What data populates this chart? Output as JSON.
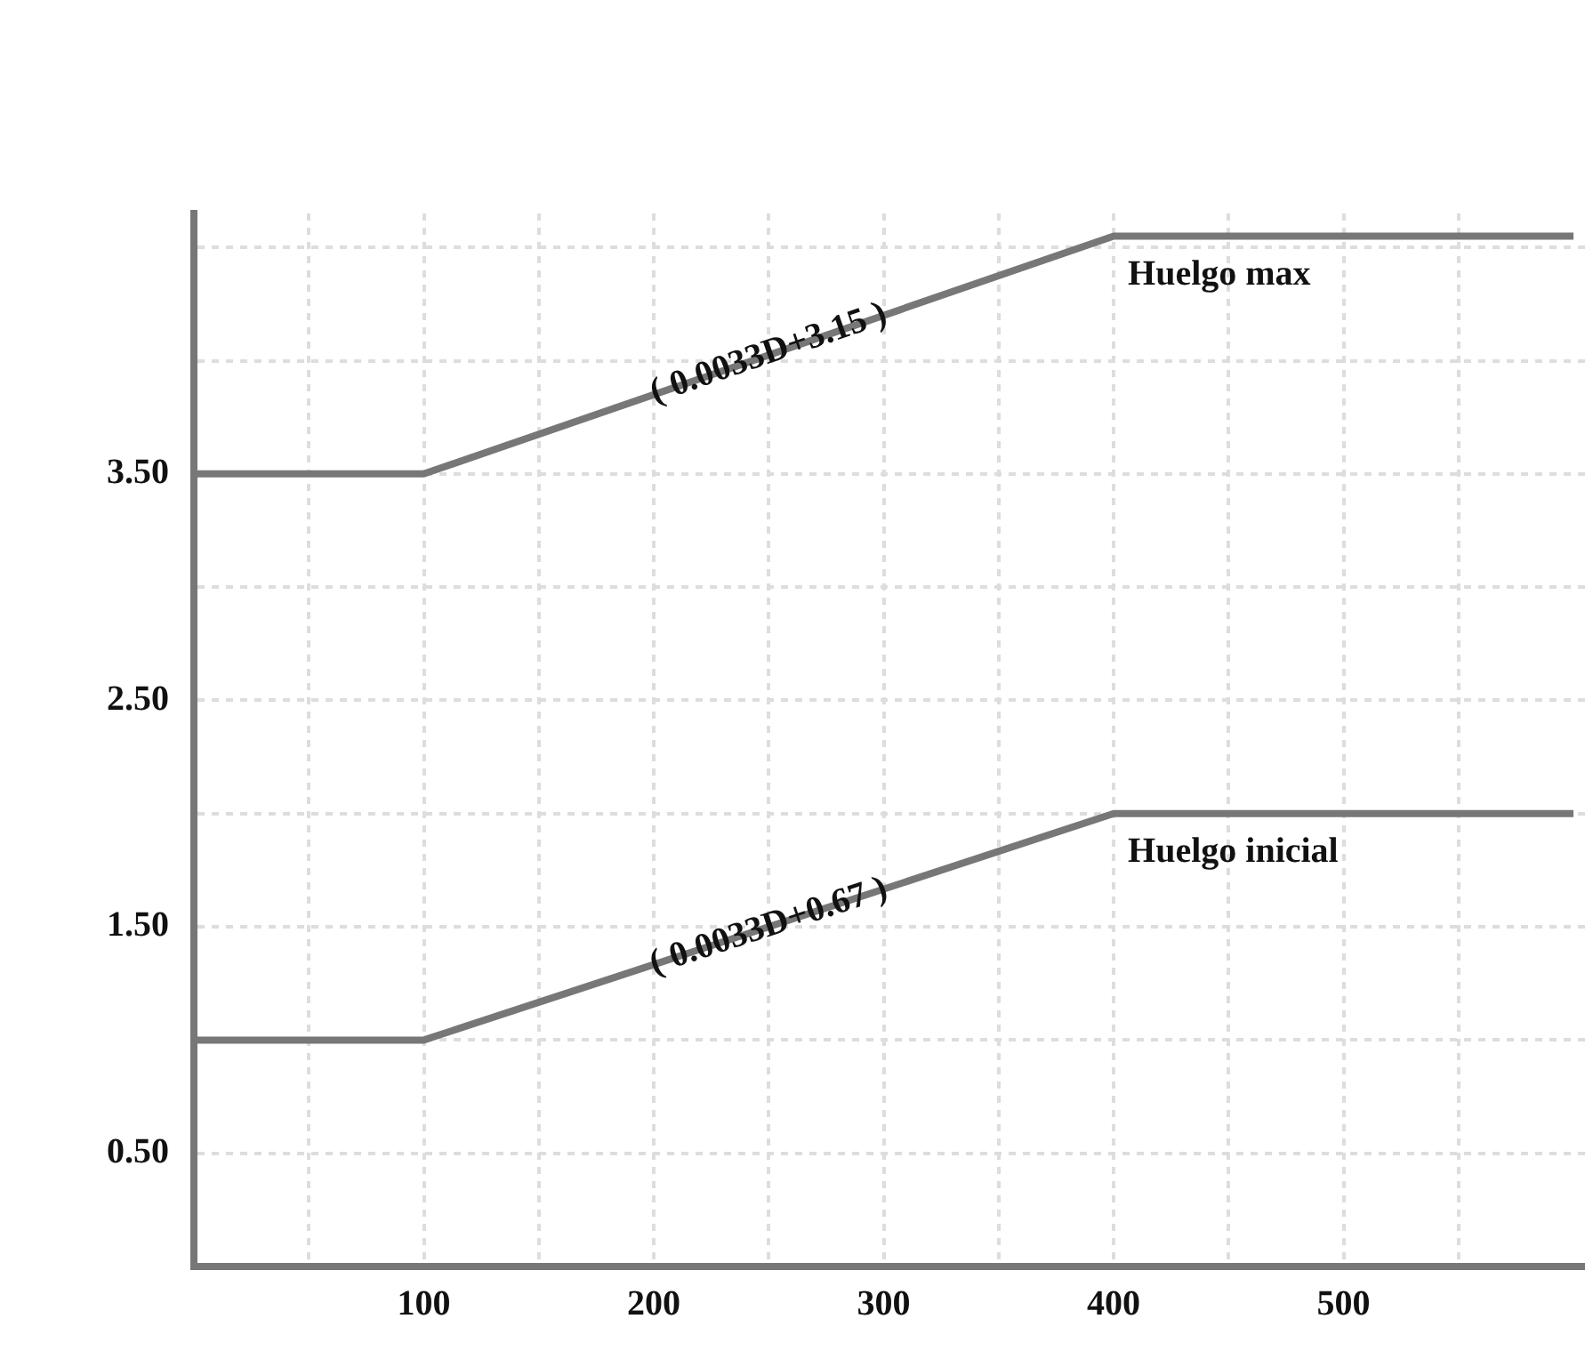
{
  "chart_data": {
    "type": "line",
    "x": [
      0,
      100,
      400,
      600
    ],
    "series": [
      {
        "name": "Huelgo max",
        "color": "#777777",
        "values": [
          3.5,
          3.5,
          4.55,
          4.55
        ]
      },
      {
        "name": "Huelgo inicial",
        "color": "#777777",
        "values": [
          1.0,
          1.0,
          2.0,
          2.0
        ]
      }
    ],
    "xlim": [
      0,
      605
    ],
    "xticks": [
      {
        "value": 50,
        "label": null
      },
      100,
      {
        "value": 150,
        "label": null
      },
      200,
      {
        "value": 250,
        "label": null
      },
      300,
      {
        "value": 350,
        "label": null
      },
      400,
      {
        "value": 450,
        "label": null
      },
      500,
      {
        "value": 550,
        "label": null
      }
    ],
    "ylim": [
      0,
      4.65
    ],
    "yticks": [
      {
        "value": 0.5,
        "label": "0.50"
      },
      {
        "value": 1,
        "label": null
      },
      {
        "value": 1.5,
        "label": "1.50"
      },
      {
        "value": 2,
        "label": null
      },
      {
        "value": 2.5,
        "label": "2.50"
      },
      {
        "value": 3,
        "label": null
      },
      {
        "value": 3.5,
        "label": "3.50"
      },
      {
        "value": 4,
        "label": null
      },
      {
        "value": 4.5,
        "label": null
      }
    ],
    "annotations": [
      {
        "text": "( 0.0033D+3.15 )",
        "x": 250,
        "y": 4.03
      },
      {
        "text": "( 0.0033D+0.67 )",
        "x": 250,
        "y": 1.5
      }
    ],
    "grid": true,
    "legend": false,
    "marker": "none",
    "line_style": "solid"
  }
}
